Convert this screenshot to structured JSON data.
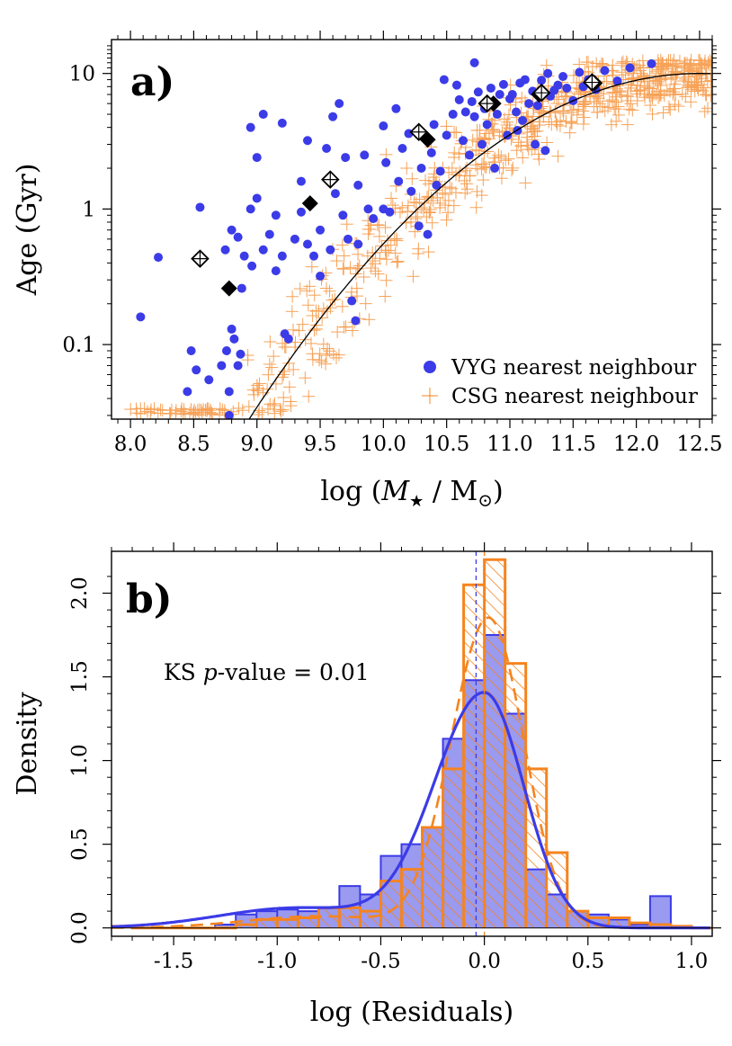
{
  "colors": {
    "vyg": "#3b3be8",
    "vyg_fill": "#9a9af0",
    "csg": "#f5841f",
    "csg_cross": "#f7a257",
    "axis": "#000000"
  },
  "chart_data": [
    {
      "panel": "a",
      "type": "scatter",
      "panel_label": "a)",
      "xlabel_prefix": "log (",
      "xlabel_var": "M",
      "xlabel_sub": "★",
      "xlabel_mid": " / M",
      "xlabel_sun": "⊙",
      "xlabel_suffix": ")",
      "ylabel": "Age (Gyr)",
      "xlim": [
        7.85,
        12.6
      ],
      "ylim_log10": [
        -1.55,
        1.25
      ],
      "yscale": "log",
      "x_ticks": [
        "8.0",
        "8.5",
        "9.0",
        "9.5",
        "10.0",
        "10.5",
        "11.0",
        "11.5",
        "12.0",
        "12.5"
      ],
      "x_tick_values": [
        8.0,
        8.5,
        9.0,
        9.5,
        10.0,
        10.5,
        11.0,
        11.5,
        12.0,
        12.5
      ],
      "y_ticks": [
        "0.1",
        "1",
        "10"
      ],
      "y_tick_values": [
        0.1,
        1,
        10
      ],
      "legend": [
        {
          "label": "VYG nearest neighbour",
          "marker": "dot"
        },
        {
          "label": "CSG nearest neighbour",
          "marker": "cross"
        }
      ],
      "fit_curve": {
        "form": "log10(age) = 1.0 - 0.201*(12.5 - x)^2",
        "color": "#000000"
      },
      "binned_medians_open": [
        [
          8.55,
          0.43
        ],
        [
          9.58,
          1.65
        ],
        [
          10.28,
          3.7
        ],
        [
          10.82,
          6.0
        ],
        [
          11.25,
          7.2
        ],
        [
          11.65,
          8.6
        ]
      ],
      "binned_medians_filled": [
        [
          8.78,
          0.26
        ],
        [
          9.42,
          1.1
        ],
        [
          10.35,
          3.25
        ],
        [
          10.87,
          6.0
        ],
        [
          11.23,
          7.0
        ],
        [
          11.67,
          8.5
        ]
      ],
      "series": [
        {
          "name": "VYG nearest neighbour",
          "points": [
            [
              8.08,
              0.16
            ],
            [
              8.22,
              0.44
            ],
            [
              8.45,
              0.045
            ],
            [
              8.48,
              0.09
            ],
            [
              8.52,
              0.065
            ],
            [
              8.55,
              1.03
            ],
            [
              8.62,
              0.055
            ],
            [
              8.72,
              0.07
            ],
            [
              8.76,
              0.09
            ],
            [
              8.78,
              0.045
            ],
            [
              8.78,
              0.03
            ],
            [
              8.8,
              0.13
            ],
            [
              8.82,
              0.11
            ],
            [
              8.85,
              0.07
            ],
            [
              8.87,
              0.085
            ],
            [
              8.88,
              0.26
            ],
            [
              8.75,
              0.5
            ],
            [
              8.8,
              0.7
            ],
            [
              8.9,
              0.45
            ],
            [
              8.95,
              1.0
            ],
            [
              8.96,
              0.38
            ],
            [
              9.0,
              2.4
            ],
            [
              9.05,
              0.5
            ],
            [
              9.1,
              0.65
            ],
            [
              9.15,
              0.35
            ],
            [
              9.22,
              0.12
            ],
            [
              9.25,
              0.11
            ],
            [
              9.2,
              0.45
            ],
            [
              9.3,
              0.6
            ],
            [
              9.35,
              0.95
            ],
            [
              9.4,
              0.55
            ],
            [
              9.45,
              0.45
            ],
            [
              9.5,
              0.32
            ],
            [
              9.58,
              0.5
            ],
            [
              9.62,
              1.3
            ],
            [
              9.72,
              0.6
            ],
            [
              9.75,
              0.21
            ],
            [
              9.78,
              0.15
            ],
            [
              9.68,
              0.9
            ],
            [
              9.8,
              1.5
            ],
            [
              9.85,
              2.5
            ],
            [
              9.88,
              1.0
            ],
            [
              9.92,
              0.85
            ],
            [
              10.0,
              1.0
            ],
            [
              10.05,
              0.95
            ],
            [
              10.02,
              2.2
            ],
            [
              10.1,
              5.5
            ],
            [
              10.15,
              2.8
            ],
            [
              10.22,
              1.35
            ],
            [
              10.28,
              0.75
            ],
            [
              10.3,
              2.0
            ],
            [
              10.35,
              0.65
            ],
            [
              10.4,
              4.2
            ],
            [
              10.45,
              1.9
            ],
            [
              10.5,
              3.5
            ],
            [
              10.55,
              5.0
            ],
            [
              10.6,
              6.4
            ],
            [
              10.63,
              3.2
            ],
            [
              10.68,
              2.5
            ],
            [
              10.7,
              6.2
            ],
            [
              10.72,
              4.8
            ],
            [
              10.75,
              7.3
            ],
            [
              10.78,
              3.0
            ],
            [
              10.8,
              5.5
            ],
            [
              10.82,
              4.2
            ],
            [
              10.85,
              7.8
            ],
            [
              10.88,
              2.0
            ],
            [
              10.9,
              5.0
            ],
            [
              10.95,
              8.3
            ],
            [
              10.98,
              3.5
            ],
            [
              11.0,
              6.5
            ],
            [
              11.02,
              7.0
            ],
            [
              11.05,
              5.2
            ],
            [
              11.08,
              8.5
            ],
            [
              11.1,
              4.5
            ],
            [
              11.12,
              9.0
            ],
            [
              11.15,
              6.0
            ],
            [
              11.18,
              7.4
            ],
            [
              11.2,
              3.0
            ],
            [
              11.22,
              5.8
            ],
            [
              11.25,
              8.9
            ],
            [
              11.28,
              2.7
            ],
            [
              11.3,
              10.0
            ],
            [
              11.32,
              6.8
            ],
            [
              11.35,
              7.5
            ],
            [
              11.38,
              8.2
            ],
            [
              11.42,
              9.5
            ],
            [
              11.45,
              7.8
            ],
            [
              11.5,
              6.3
            ],
            [
              11.55,
              10.2
            ],
            [
              11.58,
              8.0
            ],
            [
              11.62,
              9.0
            ],
            [
              11.68,
              7.6
            ],
            [
              11.75,
              10.5
            ],
            [
              11.85,
              8.8
            ],
            [
              11.95,
              11.0
            ],
            [
              12.12,
              11.8
            ],
            [
              10.72,
              12.0
            ],
            [
              10.48,
              9.0
            ],
            [
              10.58,
              8.2
            ],
            [
              10.65,
              5.2
            ],
            [
              10.92,
              7.0
            ],
            [
              11.06,
              3.8
            ],
            [
              9.6,
              4.8
            ],
            [
              9.2,
              4.3
            ],
            [
              8.95,
              4.0
            ],
            [
              9.05,
              5.0
            ],
            [
              9.4,
              3.2
            ],
            [
              9.55,
              2.8
            ],
            [
              9.7,
              2.4
            ],
            [
              9.35,
              1.6
            ],
            [
              9.0,
              1.2
            ],
            [
              9.15,
              0.9
            ],
            [
              9.5,
              0.7
            ],
            [
              9.8,
              0.55
            ],
            [
              10.12,
              1.6
            ],
            [
              10.2,
              3.6
            ],
            [
              8.85,
              0.62
            ],
            [
              9.65,
              6.0
            ],
            [
              10.0,
              4.1
            ],
            [
              10.42,
              1.5
            ],
            [
              10.38,
              2.6
            ]
          ]
        },
        {
          "name": "CSG nearest neighbour",
          "points": "generated"
        }
      ]
    },
    {
      "panel": "b",
      "type": "histogram",
      "panel_label": "b)",
      "annotation_prefix": "KS ",
      "annotation_var": "p",
      "annotation_suffix": "-value = 0.01",
      "xlabel": "log (Residuals)",
      "ylabel": "Density",
      "xlim": [
        -1.8,
        1.1
      ],
      "ylim": [
        -0.05,
        2.25
      ],
      "x_ticks": [
        "-1.5",
        "-1.0",
        "-0.5",
        "0.0",
        "0.5",
        "1.0"
      ],
      "x_tick_values": [
        -1.5,
        -1.0,
        -0.5,
        0.0,
        0.5,
        1.0
      ],
      "y_ticks": [
        "0.0",
        "0.5",
        "1.0",
        "1.5",
        "2.0"
      ],
      "y_tick_values": [
        0.0,
        0.5,
        1.0,
        1.5,
        2.0
      ],
      "bin_edges": [
        -1.8,
        -1.7,
        -1.6,
        -1.5,
        -1.4,
        -1.3,
        -1.2,
        -1.1,
        -1.0,
        -0.9,
        -0.8,
        -0.7,
        -0.6,
        -0.5,
        -0.4,
        -0.3,
        -0.2,
        -0.1,
        0.0,
        0.1,
        0.2,
        0.3,
        0.4,
        0.5,
        0.6,
        0.7,
        0.8,
        0.9,
        1.0,
        1.1
      ],
      "series": [
        {
          "name": "VYG",
          "style": "filled",
          "density": [
            0.01,
            0.0,
            0.0,
            0.0,
            0.0,
            0.02,
            0.08,
            0.1,
            0.11,
            0.1,
            0.12,
            0.25,
            0.2,
            0.43,
            0.5,
            0.6,
            1.13,
            1.48,
            1.75,
            1.28,
            0.35,
            0.2,
            0.1,
            0.08,
            0.05,
            0.02,
            0.19,
            0.0,
            0.0
          ],
          "kde_peak": 1.4,
          "kde_peak_x": 0.0,
          "median": -0.04
        },
        {
          "name": "CSG",
          "style": "hatched",
          "density": [
            0.01,
            0.0,
            0.0,
            0.0,
            0.0,
            0.0,
            0.02,
            0.05,
            0.05,
            0.06,
            0.12,
            0.12,
            0.1,
            0.28,
            0.35,
            0.6,
            0.95,
            2.05,
            2.2,
            1.58,
            0.95,
            0.45,
            0.1,
            0.06,
            0.06,
            0.03,
            0.02,
            0.01,
            0.0
          ],
          "kde_peak": 1.85,
          "kde_peak_x": 0.02,
          "median": 0.0
        }
      ]
    }
  ]
}
